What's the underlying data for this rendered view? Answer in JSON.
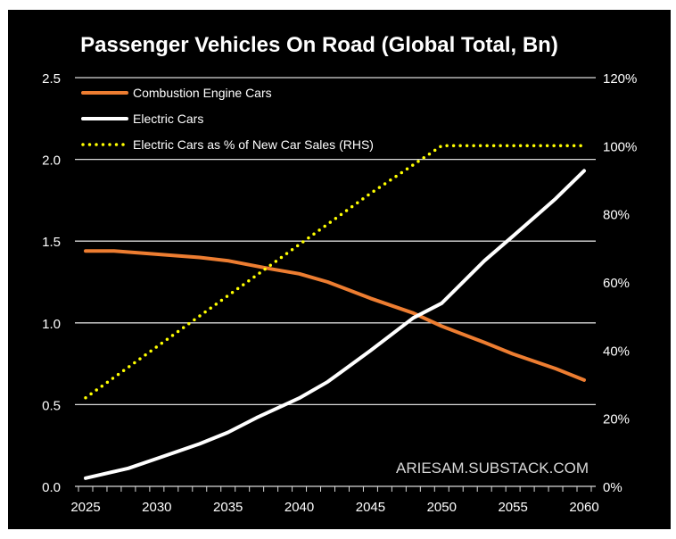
{
  "chart_data": {
    "type": "line",
    "title": "Passenger Vehicles On Road (Global Total, Bn)",
    "watermark": "ARIESAM.SUBSTACK.COM",
    "xlabel": "",
    "ylabel": "",
    "xlim": [
      2025,
      2060
    ],
    "ylim": [
      0,
      2.5
    ],
    "y2lim": [
      0,
      120
    ],
    "x_ticks": [
      "2025",
      "2030",
      "2035",
      "2040",
      "2045",
      "2050",
      "2055",
      "2060"
    ],
    "y_ticks": [
      "0.0",
      "0.5",
      "1.0",
      "1.5",
      "2.0",
      "2.5"
    ],
    "y2_ticks": [
      "0%",
      "20%",
      "40%",
      "60%",
      "80%",
      "100%",
      "120%"
    ],
    "grid": true,
    "legend_position": "top-left",
    "colors": {
      "combustion": "#ED7D31",
      "electric": "#FFFFFF",
      "ev_share": "#FFFF00",
      "background": "#000000",
      "grid": "#D9D9D9"
    },
    "series": [
      {
        "name": "Combustion Engine Cars",
        "axis": "left",
        "style": "solid",
        "x": [
          2025,
          2027,
          2030,
          2033,
          2035,
          2038,
          2040,
          2042,
          2045,
          2048,
          2050,
          2053,
          2055,
          2058,
          2060
        ],
        "values": [
          1.44,
          1.44,
          1.42,
          1.4,
          1.38,
          1.33,
          1.3,
          1.25,
          1.15,
          1.06,
          0.98,
          0.88,
          0.81,
          0.72,
          0.65
        ]
      },
      {
        "name": "Electric Cars",
        "axis": "left",
        "style": "solid",
        "x": [
          2025,
          2028,
          2030,
          2033,
          2035,
          2037,
          2039,
          2040,
          2042,
          2045,
          2048,
          2050,
          2053,
          2055,
          2058,
          2060
        ],
        "values": [
          0.05,
          0.11,
          0.17,
          0.26,
          0.33,
          0.42,
          0.5,
          0.54,
          0.64,
          0.83,
          1.03,
          1.12,
          1.38,
          1.53,
          1.76,
          1.93
        ]
      },
      {
        "name": "Electric Cars as % of New Car Sales (RHS)",
        "axis": "right",
        "style": "dotted",
        "x": [
          2025,
          2030,
          2035,
          2040,
          2045,
          2050,
          2055,
          2060
        ],
        "values": [
          26,
          41,
          56,
          71,
          86,
          100,
          100,
          100
        ]
      }
    ]
  }
}
